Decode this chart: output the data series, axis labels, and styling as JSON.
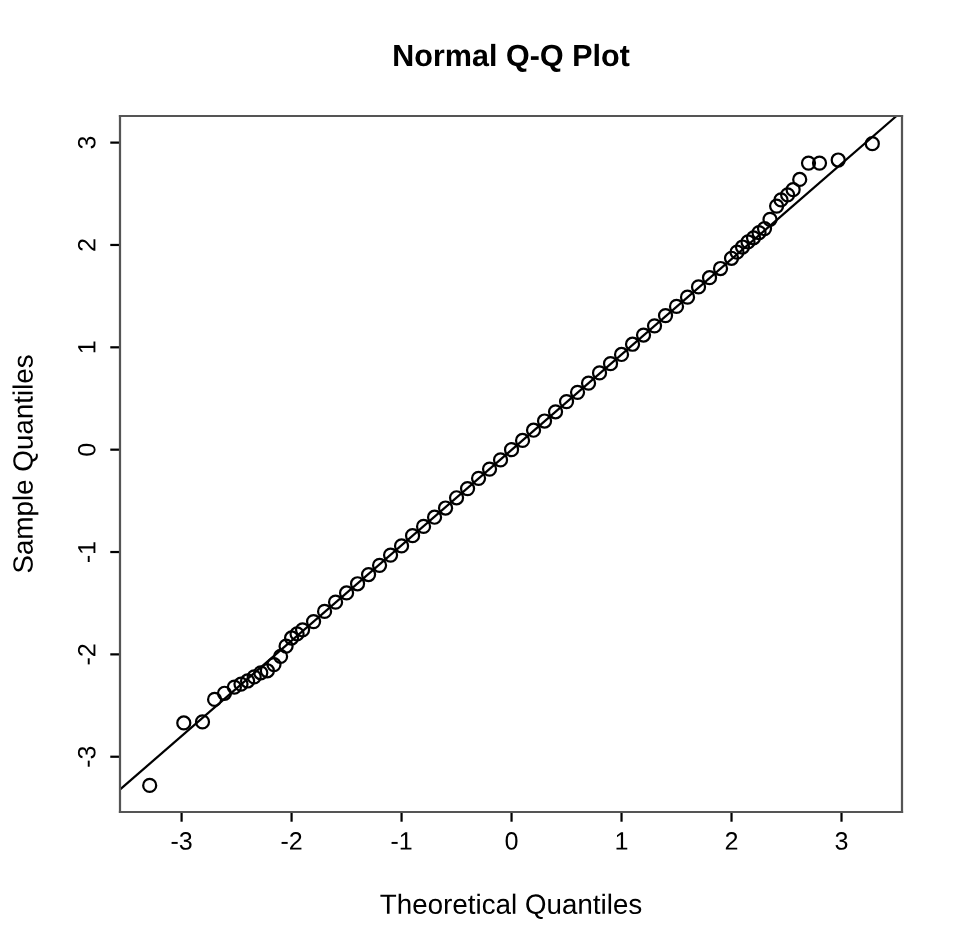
{
  "chart_data": {
    "type": "scatter",
    "title": "Normal Q-Q Plot",
    "xlabel": "Theoretical Quantiles",
    "ylabel": "Sample Quantiles",
    "xlim": [
      -3.56,
      3.55
    ],
    "ylim": [
      -3.54,
      3.26
    ],
    "xticks": [
      -3,
      -2,
      -1,
      0,
      1,
      2,
      3
    ],
    "yticks": [
      -3,
      -2,
      -1,
      0,
      1,
      2,
      3
    ],
    "grid": false,
    "marker": "circle",
    "series": [
      {
        "color": "#000000",
        "x": [
          -3.29,
          -2.98,
          -2.81,
          -2.7,
          -2.61,
          -2.52,
          -2.46,
          -2.4,
          -2.34,
          -2.28,
          -2.22,
          -2.16,
          -2.1,
          -2.05,
          -2.0,
          -1.95,
          -1.9,
          -1.8,
          -1.7,
          -1.6,
          -1.5,
          -1.4,
          -1.3,
          -1.2,
          -1.1,
          -1.0,
          -0.9,
          -0.8,
          -0.7,
          -0.6,
          -0.5,
          -0.4,
          -0.3,
          -0.2,
          -0.1,
          0.0,
          0.1,
          0.2,
          0.3,
          0.4,
          0.5,
          0.6,
          0.7,
          0.8,
          0.9,
          1.0,
          1.1,
          1.2,
          1.3,
          1.4,
          1.5,
          1.6,
          1.7,
          1.8,
          1.9,
          2.0,
          2.05,
          2.1,
          2.15,
          2.2,
          2.25,
          2.3,
          2.35,
          2.41,
          2.45,
          2.51,
          2.56,
          2.62,
          2.7,
          2.8,
          2.97,
          3.28
        ],
        "values": [
          -3.28,
          -2.67,
          -2.66,
          -2.44,
          -2.38,
          -2.32,
          -2.29,
          -2.26,
          -2.22,
          -2.18,
          -2.16,
          -2.1,
          -2.02,
          -1.92,
          -1.84,
          -1.8,
          -1.76,
          -1.68,
          -1.58,
          -1.49,
          -1.4,
          -1.31,
          -1.22,
          -1.13,
          -1.03,
          -0.94,
          -0.84,
          -0.75,
          -0.66,
          -0.57,
          -0.47,
          -0.38,
          -0.28,
          -0.19,
          -0.1,
          0.0,
          0.09,
          0.19,
          0.28,
          0.37,
          0.47,
          0.56,
          0.65,
          0.75,
          0.84,
          0.93,
          1.03,
          1.12,
          1.21,
          1.31,
          1.4,
          1.49,
          1.59,
          1.68,
          1.77,
          1.87,
          1.93,
          1.98,
          2.03,
          2.07,
          2.12,
          2.16,
          2.25,
          2.38,
          2.44,
          2.49,
          2.54,
          2.64,
          2.8,
          2.8,
          2.83,
          2.99
        ]
      },
      {
        "type": "line",
        "color": "#000000",
        "x": [
          -3.56,
          3.5
        ],
        "values": [
          -3.32,
          3.26
        ],
        "marker": "none"
      }
    ]
  }
}
